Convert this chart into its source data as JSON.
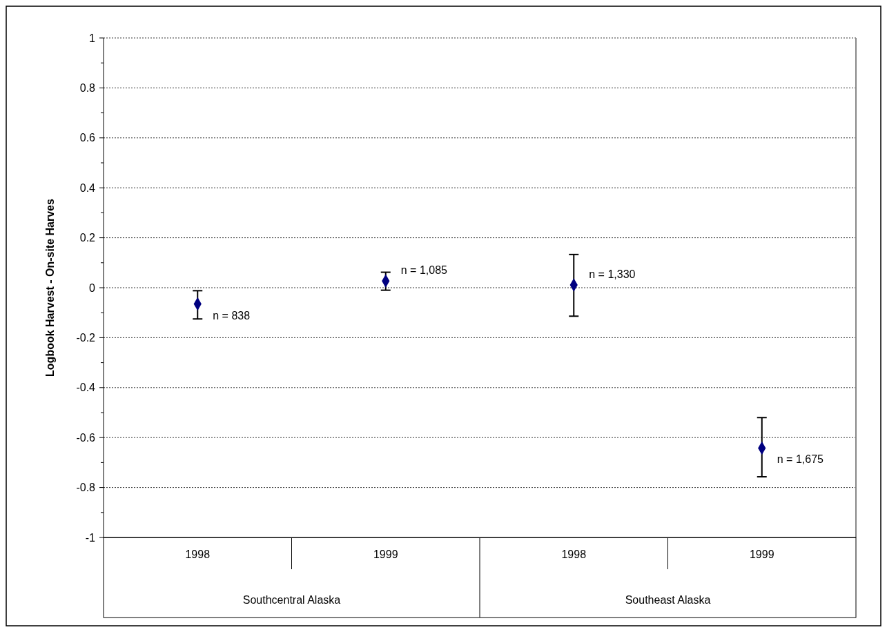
{
  "chart_data": {
    "type": "scatter",
    "ylabel": "Logbook Harvest - On-site Harves",
    "categories": [
      "1998",
      "1999",
      "1998",
      "1999"
    ],
    "annotations": [
      "Southcentral Alaska",
      "Southeast Alaska",
      "n = 838",
      "n = 1,085",
      "n = 1,330",
      "n = 1,675"
    ],
    "series": [
      {
        "color": "#000080",
        "values": [
          -0.065,
          0.027,
          0.011,
          -0.642
        ],
        "errors": [
          [
            -0.125,
            -0.012
          ],
          [
            -0.01,
            0.062
          ],
          [
            -0.114,
            0.133
          ],
          [
            -0.757,
            -0.52
          ]
        ]
      }
    ],
    "ylim": [
      -1,
      1
    ],
    "yticks": [
      -1,
      {
        "value": -0.9,
        "label": null
      },
      -0.8,
      {
        "value": -0.7,
        "label": null
      },
      -0.6,
      {
        "value": -0.5,
        "label": null
      },
      -0.4,
      {
        "value": -0.3,
        "label": null
      },
      -0.2,
      {
        "value": -0.1,
        "label": null
      },
      0,
      {
        "value": 0.1,
        "label": null
      },
      0.2,
      {
        "value": 0.3,
        "label": null
      },
      0.4,
      {
        "value": 0.5,
        "label": null
      },
      0.6,
      {
        "value": 0.7,
        "label": null
      },
      0.8,
      {
        "value": 0.9,
        "label": null
      },
      1
    ],
    "grid": "y",
    "marker": "diamond",
    "legend": false
  }
}
